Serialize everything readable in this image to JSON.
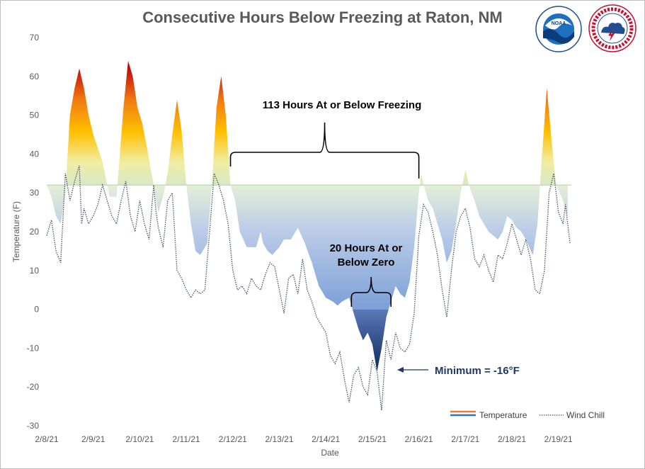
{
  "logos": {
    "noaa": "NOAA",
    "nws": "NATIONAL WEATHER SERVICE"
  },
  "chart_data": {
    "type": "line",
    "title": "Consecutive Hours Below Freezing at Raton, NM",
    "xlabel": "Date",
    "ylabel": "Temperature (F)",
    "ylim": [
      -30,
      70
    ],
    "yticks": [
      -30,
      -20,
      -10,
      0,
      10,
      20,
      30,
      40,
      50,
      60,
      70
    ],
    "x_tick_labels": [
      "2/8/21",
      "2/9/21",
      "2/10/21",
      "2/11/21",
      "2/12/21",
      "2/13/21",
      "2/14/21",
      "2/15/21",
      "2/16/21",
      "2/17/21",
      "2/18/21",
      "2/19/21"
    ],
    "freezing_line": 32,
    "grid": false,
    "legend_position": "bottom-right",
    "series": [
      {
        "name": "Temperature",
        "style": "filled gradient area relative to 32F",
        "points": [
          [
            0.0,
            32
          ],
          [
            0.1,
            29
          ],
          [
            0.2,
            24
          ],
          [
            0.3,
            22
          ],
          [
            0.4,
            30
          ],
          [
            0.5,
            50
          ],
          [
            0.6,
            57
          ],
          [
            0.7,
            62
          ],
          [
            0.8,
            57
          ],
          [
            0.9,
            50
          ],
          [
            1.0,
            45
          ],
          [
            1.2,
            38
          ],
          [
            1.3,
            32
          ],
          [
            1.35,
            29
          ],
          [
            1.5,
            29
          ],
          [
            1.65,
            52
          ],
          [
            1.75,
            64
          ],
          [
            1.85,
            60
          ],
          [
            1.95,
            52
          ],
          [
            2.05,
            48
          ],
          [
            2.15,
            42
          ],
          [
            2.3,
            32
          ],
          [
            2.35,
            28
          ],
          [
            2.4,
            25
          ],
          [
            2.5,
            29
          ],
          [
            2.6,
            35
          ],
          [
            2.7,
            45
          ],
          [
            2.8,
            54
          ],
          [
            2.9,
            46
          ],
          [
            3.0,
            32
          ],
          [
            3.1,
            22
          ],
          [
            3.2,
            15
          ],
          [
            3.3,
            14
          ],
          [
            3.45,
            17
          ],
          [
            3.55,
            32
          ],
          [
            3.65,
            52
          ],
          [
            3.75,
            60
          ],
          [
            3.85,
            50
          ],
          [
            3.95,
            32
          ],
          [
            4.05,
            28
          ],
          [
            4.15,
            20
          ],
          [
            4.3,
            16
          ],
          [
            4.5,
            16
          ],
          [
            4.6,
            20
          ],
          [
            4.65,
            17
          ],
          [
            4.75,
            15
          ],
          [
            4.85,
            14
          ],
          [
            5.0,
            16
          ],
          [
            5.1,
            18
          ],
          [
            5.25,
            18
          ],
          [
            5.4,
            21
          ],
          [
            5.55,
            17
          ],
          [
            5.7,
            12
          ],
          [
            5.85,
            6
          ],
          [
            6.0,
            3
          ],
          [
            6.15,
            2
          ],
          [
            6.25,
            1
          ],
          [
            6.35,
            2
          ],
          [
            6.5,
            3
          ],
          [
            6.6,
            -1
          ],
          [
            6.7,
            -5
          ],
          [
            6.8,
            -8
          ],
          [
            6.9,
            -6
          ],
          [
            7.0,
            -9
          ],
          [
            7.1,
            -16
          ],
          [
            7.2,
            -10
          ],
          [
            7.3,
            -2
          ],
          [
            7.4,
            2
          ],
          [
            7.5,
            6
          ],
          [
            7.6,
            4
          ],
          [
            7.7,
            3
          ],
          [
            7.8,
            7
          ],
          [
            7.9,
            16
          ],
          [
            8.0,
            30
          ],
          [
            8.05,
            35
          ],
          [
            8.1,
            32
          ],
          [
            8.2,
            28
          ],
          [
            8.3,
            26
          ],
          [
            8.4,
            22
          ],
          [
            8.5,
            18
          ],
          [
            8.6,
            12
          ],
          [
            8.7,
            15
          ],
          [
            8.8,
            22
          ],
          [
            8.9,
            30
          ],
          [
            9.0,
            36
          ],
          [
            9.1,
            31
          ],
          [
            9.2,
            28
          ],
          [
            9.3,
            24
          ],
          [
            9.5,
            20
          ],
          [
            9.7,
            18
          ],
          [
            9.8,
            20
          ],
          [
            9.9,
            24
          ],
          [
            10.0,
            23
          ],
          [
            10.1,
            21
          ],
          [
            10.2,
            20
          ],
          [
            10.3,
            18
          ],
          [
            10.45,
            14
          ],
          [
            10.55,
            22
          ],
          [
            10.65,
            40
          ],
          [
            10.75,
            57
          ],
          [
            10.85,
            44
          ],
          [
            10.95,
            32
          ],
          [
            11.1,
            28
          ],
          [
            11.2,
            24
          ]
        ]
      },
      {
        "name": "Wind Chill",
        "style": "dotted line",
        "points": [
          [
            0.0,
            19
          ],
          [
            0.1,
            23
          ],
          [
            0.2,
            15
          ],
          [
            0.3,
            12
          ],
          [
            0.4,
            35
          ],
          [
            0.5,
            28
          ],
          [
            0.6,
            33
          ],
          [
            0.7,
            37
          ],
          [
            0.75,
            22
          ],
          [
            0.8,
            26
          ],
          [
            0.9,
            22
          ],
          [
            1.0,
            24
          ],
          [
            1.1,
            27
          ],
          [
            1.2,
            32
          ],
          [
            1.3,
            28
          ],
          [
            1.4,
            24
          ],
          [
            1.5,
            22
          ],
          [
            1.6,
            28
          ],
          [
            1.7,
            33
          ],
          [
            1.8,
            24
          ],
          [
            1.9,
            20
          ],
          [
            2.0,
            28
          ],
          [
            2.1,
            22
          ],
          [
            2.2,
            18
          ],
          [
            2.3,
            32
          ],
          [
            2.35,
            25
          ],
          [
            2.4,
            21
          ],
          [
            2.5,
            16
          ],
          [
            2.6,
            28
          ],
          [
            2.7,
            30
          ],
          [
            2.8,
            10
          ],
          [
            2.9,
            8
          ],
          [
            3.0,
            5
          ],
          [
            3.1,
            3
          ],
          [
            3.2,
            5
          ],
          [
            3.3,
            4
          ],
          [
            3.4,
            5
          ],
          [
            3.5,
            20
          ],
          [
            3.6,
            35
          ],
          [
            3.7,
            32
          ],
          [
            3.8,
            28
          ],
          [
            3.9,
            22
          ],
          [
            4.0,
            10
          ],
          [
            4.1,
            5
          ],
          [
            4.2,
            6
          ],
          [
            4.3,
            4
          ],
          [
            4.4,
            8
          ],
          [
            4.5,
            6
          ],
          [
            4.6,
            5
          ],
          [
            4.7,
            9
          ],
          [
            4.8,
            12
          ],
          [
            4.9,
            11
          ],
          [
            5.0,
            5
          ],
          [
            5.1,
            -1
          ],
          [
            5.2,
            8
          ],
          [
            5.3,
            9
          ],
          [
            5.4,
            4
          ],
          [
            5.5,
            13
          ],
          [
            5.6,
            5
          ],
          [
            5.7,
            2
          ],
          [
            5.8,
            -2
          ],
          [
            5.9,
            -4
          ],
          [
            6.0,
            -6
          ],
          [
            6.1,
            -12
          ],
          [
            6.2,
            -14
          ],
          [
            6.3,
            -11
          ],
          [
            6.4,
            -18
          ],
          [
            6.5,
            -24
          ],
          [
            6.6,
            -17
          ],
          [
            6.7,
            -15
          ],
          [
            6.8,
            -20
          ],
          [
            6.9,
            -22
          ],
          [
            7.0,
            -13
          ],
          [
            7.1,
            -16
          ],
          [
            7.2,
            -26
          ],
          [
            7.3,
            -8
          ],
          [
            7.4,
            -13
          ],
          [
            7.5,
            -6
          ],
          [
            7.6,
            -10
          ],
          [
            7.7,
            -11
          ],
          [
            7.8,
            -9
          ],
          [
            7.9,
            -1
          ],
          [
            8.0,
            19
          ],
          [
            8.1,
            27
          ],
          [
            8.2,
            25
          ],
          [
            8.3,
            20
          ],
          [
            8.4,
            14
          ],
          [
            8.5,
            5
          ],
          [
            8.6,
            -2
          ],
          [
            8.7,
            10
          ],
          [
            8.8,
            20
          ],
          [
            8.9,
            24
          ],
          [
            9.0,
            26
          ],
          [
            9.1,
            21
          ],
          [
            9.2,
            13
          ],
          [
            9.3,
            11
          ],
          [
            9.4,
            14
          ],
          [
            9.5,
            10
          ],
          [
            9.6,
            7
          ],
          [
            9.7,
            14
          ],
          [
            9.8,
            13
          ],
          [
            9.9,
            17
          ],
          [
            10.0,
            22
          ],
          [
            10.1,
            18
          ],
          [
            10.2,
            14
          ],
          [
            10.3,
            18
          ],
          [
            10.4,
            13
          ],
          [
            10.5,
            5
          ],
          [
            10.6,
            4
          ],
          [
            10.7,
            10
          ],
          [
            10.8,
            30
          ],
          [
            10.9,
            35
          ],
          [
            11.0,
            25
          ],
          [
            11.1,
            22
          ],
          [
            11.15,
            27
          ],
          [
            11.25,
            17
          ]
        ]
      }
    ],
    "annotations": [
      {
        "text": "113 Hours At or Below Freezing",
        "x_start": 3.95,
        "x_end": 8.0
      },
      {
        "text": "20 Hours At or Below Zero",
        "lines": [
          "20 Hours At or",
          "Below Zero"
        ],
        "x_start": 6.55,
        "x_end": 7.4
      },
      {
        "text": "Minimum = -16°F",
        "x": 7.1,
        "y": -16
      }
    ]
  }
}
